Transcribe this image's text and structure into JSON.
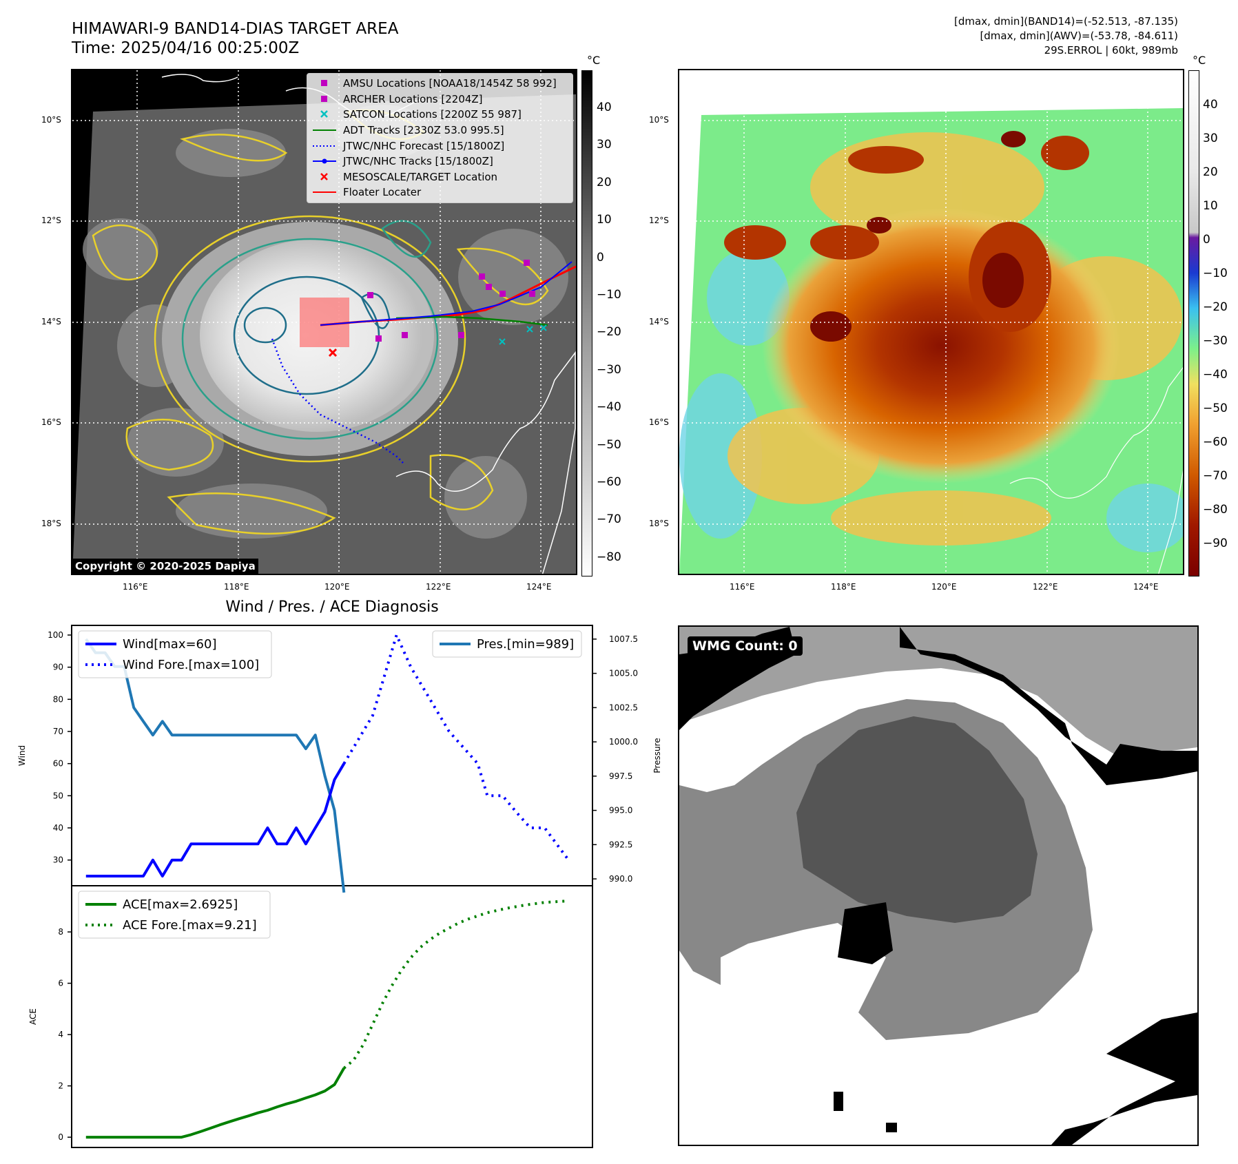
{
  "header": {
    "title_line1": "HIMAWARI-9 BAND14-DIAS TARGET AREA",
    "title_line2": "Time: 2025/04/16 00:25:00Z",
    "stats_line1": "[dmax, dmin](BAND14)=(-52.513, -87.135)",
    "stats_line2": "[dmax, dmin](AWV)=(-53.78, -84.611)",
    "stats_line3": "29S.ERROL | 60kt, 989mb"
  },
  "map_axes": {
    "lon_labels": [
      "116°E",
      "118°E",
      "120°E",
      "122°E",
      "124°E"
    ],
    "lat_labels": [
      "10°S",
      "12°S",
      "14°S",
      "16°S",
      "18°S"
    ]
  },
  "left_map": {
    "copyright": "Copyright © 2020-2025 Dapiya",
    "legend": [
      {
        "label": "AMSU Locations [NOAA18/1454Z 58 992]",
        "symbol": "square",
        "color": "#c000c0"
      },
      {
        "label": "ARCHER Locations [2204Z]",
        "symbol": "square",
        "color": "#c000c0"
      },
      {
        "label": "SATCON Locations [2200Z 55 987]",
        "symbol": "x",
        "color": "#00c0c0"
      },
      {
        "label": "ADT Tracks [2330Z 53.0 995.5]",
        "symbol": "line",
        "color": "#008000"
      },
      {
        "label": "JTWC/NHC Forecast [15/1800Z]",
        "symbol": "dotted",
        "color": "#0000ff"
      },
      {
        "label": "JTWC/NHC Tracks [15/1800Z]",
        "symbol": "line-dot",
        "color": "#0000ff"
      },
      {
        "label": "MESOSCALE/TARGET Location",
        "symbol": "x",
        "color": "#ff0000"
      },
      {
        "label": "Floater Locater",
        "symbol": "line",
        "color": "#ff0000"
      }
    ]
  },
  "colorbar_left": {
    "unit": "°C",
    "ticks": [
      "40",
      "30",
      "20",
      "10",
      "0",
      "−10",
      "−20",
      "−30",
      "−40",
      "−50",
      "−60",
      "−70",
      "−80"
    ]
  },
  "colorbar_right": {
    "unit": "°C",
    "ticks": [
      "40",
      "30",
      "20",
      "10",
      "0",
      "−10",
      "−20",
      "−30",
      "−40",
      "−50",
      "−60",
      "−70",
      "−80",
      "−90"
    ]
  },
  "wmg": {
    "label": "WMG Count: 0"
  },
  "colors": {
    "wind": "#0000ff",
    "pres": "#1f77b4",
    "ace": "#008000"
  },
  "chart_data": [
    {
      "type": "line",
      "title": "Wind / Pres. / ACE Diagnosis",
      "ylabel": "Wind",
      "y2label": "Pressure",
      "ylim": [
        22,
        103
      ],
      "y2lim": [
        989.5,
        1008.5
      ],
      "y_ticks": [
        30,
        40,
        50,
        60,
        70,
        80,
        90,
        100
      ],
      "y2_ticks": [
        990.0,
        992.5,
        995.0,
        997.5,
        1000.0,
        1002.5,
        1005.0,
        1007.5
      ],
      "y2_tick_labels": [
        "990.0",
        "992.5",
        "995.0",
        "997.5",
        "1000.0",
        "1002.5",
        "1005.0",
        "1007.5"
      ],
      "series": [
        {
          "name": "Wind[max=60]",
          "axis": "left",
          "style": "solid",
          "x": [
            0,
            1,
            2,
            3,
            4,
            5,
            6,
            7,
            8,
            9,
            10,
            11,
            12,
            13,
            14,
            15,
            16,
            17,
            18,
            19,
            20,
            21,
            22,
            23,
            24,
            25,
            26,
            27
          ],
          "values": [
            25,
            25,
            25,
            25,
            25,
            25,
            25,
            30,
            25,
            30,
            30,
            35,
            35,
            35,
            35,
            35,
            35,
            35,
            35,
            40,
            35,
            35,
            40,
            35,
            40,
            45,
            55,
            60
          ]
        },
        {
          "name": "Wind Fore.[max=100]",
          "axis": "left",
          "style": "dotted",
          "x": [
            27,
            30,
            32.5,
            34,
            36,
            38,
            41,
            42,
            43.6,
            45,
            46.5,
            48,
            50.5
          ],
          "values": [
            60,
            75,
            100,
            90,
            80,
            70,
            60,
            50,
            50,
            45,
            40,
            40,
            30
          ]
        },
        {
          "name": "Pres.[min=989]",
          "axis": "right",
          "style": "solid",
          "x": [
            0,
            1,
            2,
            3,
            4,
            5,
            6,
            7,
            8,
            9,
            10,
            11,
            12,
            13,
            14,
            15,
            16,
            17,
            18,
            19,
            20,
            21,
            22,
            23,
            24,
            25,
            26,
            27
          ],
          "values": [
            1007.5,
            1006.5,
            1006.5,
            1005.5,
            1005.5,
            1002.5,
            1001.5,
            1000.5,
            1001.5,
            1000.5,
            1000.5,
            1000.5,
            1000.5,
            1000.5,
            1000.5,
            1000.5,
            1000.5,
            1000.5,
            1000.5,
            1000.5,
            1000.5,
            1000.5,
            1000.5,
            999.5,
            1000.5,
            997.5,
            995,
            989
          ]
        }
      ]
    },
    {
      "type": "line",
      "ylabel": "ACE",
      "ylim": [
        -0.4,
        9.8
      ],
      "y_ticks": [
        0,
        2,
        4,
        6,
        8
      ],
      "series": [
        {
          "name": "ACE[max=2.6925]",
          "style": "solid",
          "x": [
            0,
            2,
            4,
            6,
            8,
            9,
            10,
            11,
            12,
            13,
            14,
            15,
            16,
            17,
            18,
            19,
            20,
            21,
            22,
            23,
            24,
            25,
            26,
            27
          ],
          "values": [
            0,
            0,
            0,
            0,
            0,
            0,
            0,
            0.1,
            0.22,
            0.35,
            0.48,
            0.6,
            0.72,
            0.83,
            0.95,
            1.05,
            1.18,
            1.3,
            1.4,
            1.53,
            1.65,
            1.8,
            2.05,
            2.6925
          ]
        },
        {
          "name": "ACE Fore.[max=9.21]",
          "style": "dotted",
          "x": [
            27,
            28,
            29,
            30,
            31,
            32,
            33,
            34,
            35,
            36,
            37,
            38,
            39,
            40,
            42,
            44,
            46,
            48,
            50.5
          ],
          "values": [
            2.6925,
            3.0,
            3.6,
            4.4,
            5.2,
            5.9,
            6.5,
            7.0,
            7.4,
            7.7,
            7.95,
            8.15,
            8.35,
            8.5,
            8.75,
            8.92,
            9.05,
            9.15,
            9.21
          ]
        }
      ]
    }
  ]
}
